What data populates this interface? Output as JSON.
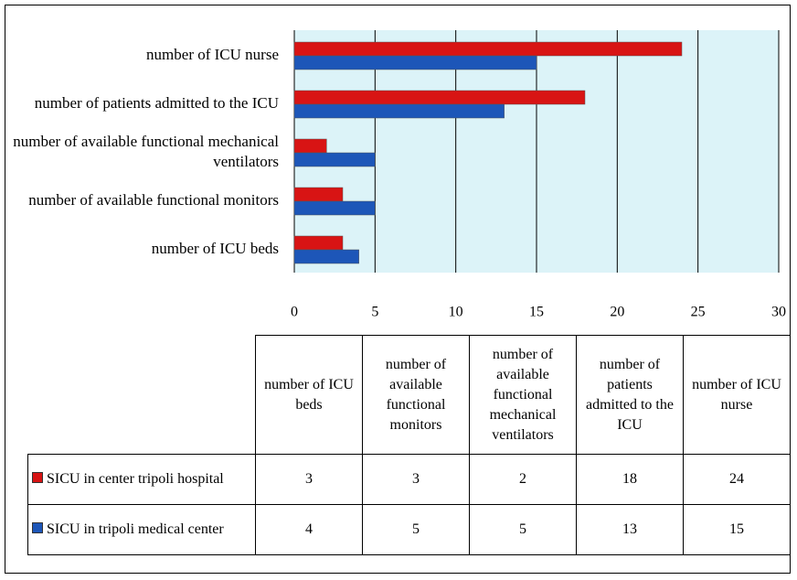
{
  "chart_data": {
    "type": "bar",
    "orientation": "horizontal",
    "categories": [
      "number of ICU beds",
      "number of available functional monitors",
      "number of available functional mechanical ventilators",
      "number of patients admitted to the ICU",
      "number of ICU nurse"
    ],
    "series": [
      {
        "name": "SICU in center tripoli hospital",
        "color": "#d81414",
        "values": [
          3,
          3,
          2,
          18,
          24
        ]
      },
      {
        "name": "SICU in tripoli medical center",
        "color": "#1d56b8",
        "values": [
          4,
          5,
          5,
          13,
          15
        ]
      }
    ],
    "xlim": [
      0,
      30
    ],
    "xticks": [
      0,
      5,
      10,
      15,
      20,
      25,
      30
    ],
    "grid": true,
    "data_table": true
  }
}
